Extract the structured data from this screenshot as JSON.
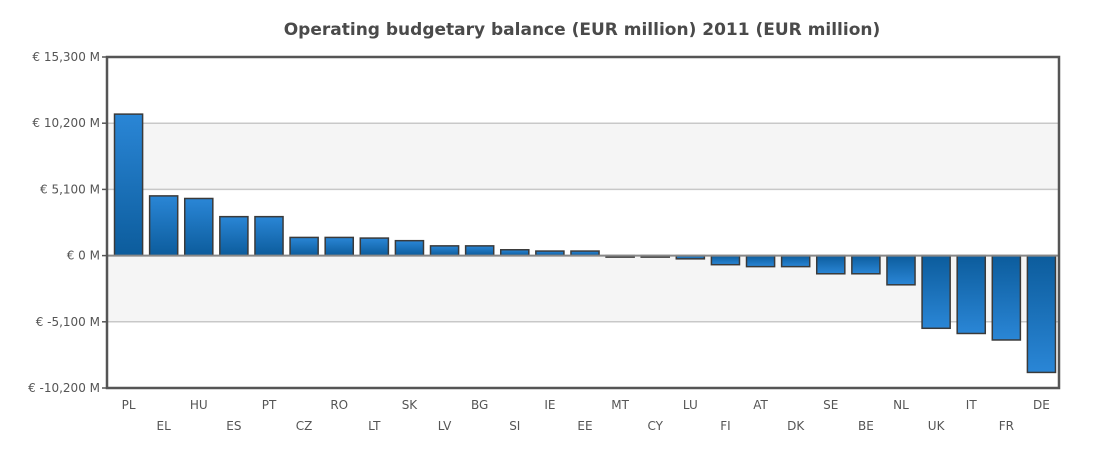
{
  "chart_data": {
    "type": "bar",
    "title": "Operating budgetary balance (EUR million) 2011 (EUR million)",
    "xlabel": "",
    "ylabel": "",
    "ylim": [
      -10200,
      15300
    ],
    "yticks": [
      15300,
      10200,
      5100,
      0,
      -5100,
      -10200
    ],
    "ytick_labels": [
      "€ 15,300 M",
      "€ 10,200 M",
      "€ 5,100 M",
      "€ 0 M",
      "€ -5,100 M",
      "€ -10,200 M"
    ],
    "grid": true,
    "legend": "none",
    "categories": [
      "PL",
      "EL",
      "HU",
      "ES",
      "PT",
      "CZ",
      "RO",
      "LT",
      "SK",
      "LV",
      "BG",
      "SI",
      "IE",
      "EE",
      "MT",
      "CY",
      "LU",
      "FI",
      "AT",
      "DK",
      "SE",
      "BE",
      "NL",
      "UK",
      "IT",
      "FR",
      "DE"
    ],
    "values": [
      10900,
      4600,
      4400,
      3000,
      3000,
      1400,
      1400,
      1350,
      1150,
      750,
      750,
      450,
      350,
      350,
      -50,
      -100,
      -250,
      -700,
      -850,
      -850,
      -1400,
      -1400,
      -2250,
      -5600,
      -6000,
      -6500,
      -9000
    ],
    "colors": {
      "bar": "#1f78c8",
      "bar_dark": "#0f5e9e",
      "bar_border": "#3a3a3a",
      "band": "#f5f5f5",
      "grid": "#c8c8c8",
      "frame": "#555555"
    }
  }
}
